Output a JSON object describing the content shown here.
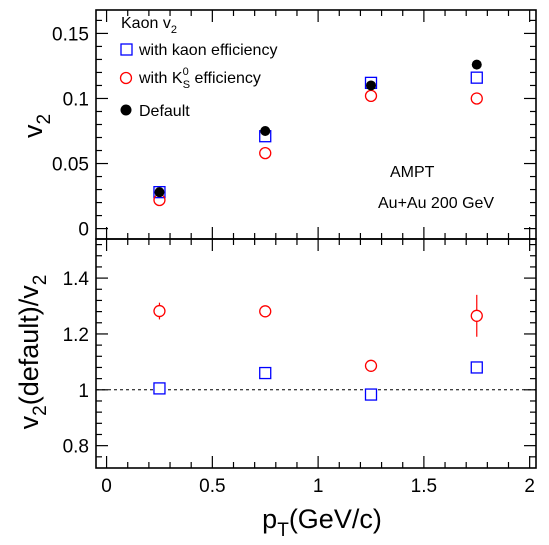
{
  "chart_data": [
    {
      "type": "scatter",
      "panel": "top",
      "xlabel_main": "p",
      "xlabel_sub": "T",
      "xlabel_rest": "(GeV/c)",
      "ylabel_main": "v",
      "ylabel_sub": "2",
      "xlim": [
        -0.05,
        2.03
      ],
      "ylim": [
        -0.008,
        0.168
      ],
      "x_ticks": [
        0,
        0.5,
        1,
        1.5,
        2
      ],
      "x_tick_labels": [
        "0",
        "0.5",
        "1",
        "1.5",
        "2"
      ],
      "y_ticks": [
        0,
        0.05,
        0.1,
        0.15
      ],
      "y_tick_labels": [
        "0",
        "0.05",
        "0.1",
        "0.15"
      ],
      "legend_title_main": "Kaon v",
      "legend_title_sub": "2",
      "legend_position": "top-left",
      "annotations": [
        "AMPT",
        "Au+Au 200 GeV"
      ],
      "series": [
        {
          "name": "with kaon efficiency",
          "marker": "open-square",
          "color": "#0000ff",
          "x": [
            0.25,
            0.75,
            1.25,
            1.75
          ],
          "y": [
            0.028,
            0.071,
            0.112,
            0.116
          ]
        },
        {
          "name_main": "with K",
          "name_sup": "0",
          "name_sub": "S",
          "name_rest": " efficiency",
          "marker": "open-circle",
          "color": "#ff0000",
          "x": [
            0.25,
            0.75,
            1.25,
            1.75
          ],
          "y": [
            0.022,
            0.058,
            0.102,
            0.1
          ]
        },
        {
          "name": "Default",
          "marker": "filled-circle",
          "color": "#000000",
          "x": [
            0.25,
            0.75,
            1.25,
            1.75
          ],
          "y": [
            0.028,
            0.075,
            0.11,
            0.126
          ]
        }
      ]
    },
    {
      "type": "scatter",
      "panel": "bottom",
      "ylabel": "v2(default)/v2",
      "ylabel_parts": [
        "v",
        "2",
        "(default)/v",
        "2"
      ],
      "xlim": [
        -0.05,
        2.03
      ],
      "ylim": [
        0.72,
        1.54
      ],
      "y_ticks": [
        0.8,
        1.0,
        1.2,
        1.4
      ],
      "y_tick_labels": [
        "0.8",
        "1",
        "1.2",
        "1.4"
      ],
      "reference_line": 1.0,
      "series": [
        {
          "marker": "open-square",
          "color": "#0000ff",
          "x": [
            0.25,
            0.75,
            1.25,
            1.75
          ],
          "y": [
            1.005,
            1.06,
            0.983,
            1.08
          ],
          "yerr": [
            0.008,
            0.01,
            0.01,
            0.012
          ]
        },
        {
          "marker": "open-circle",
          "color": "#ff0000",
          "x": [
            0.25,
            0.75,
            1.25,
            1.75
          ],
          "y": [
            1.282,
            1.281,
            1.086,
            1.265
          ],
          "yerr": [
            0.03,
            0.012,
            0.012,
            0.075
          ]
        }
      ]
    }
  ]
}
